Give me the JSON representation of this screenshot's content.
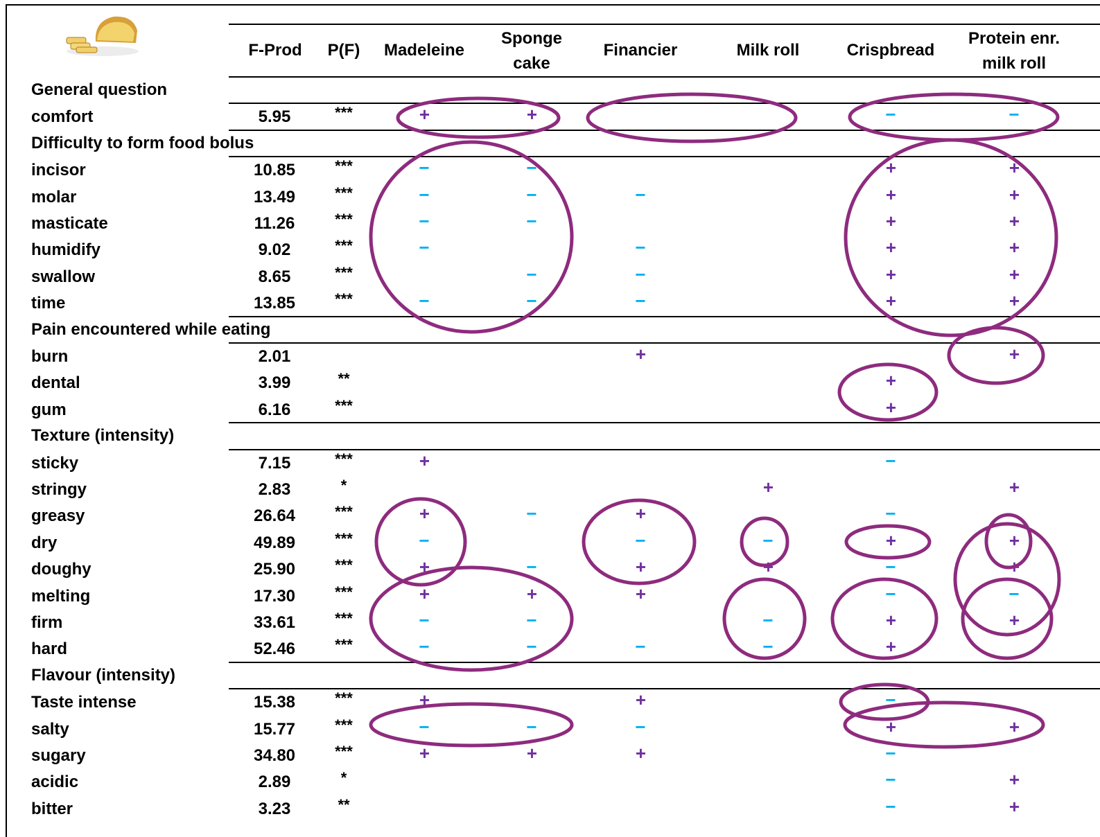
{
  "columns": {
    "fprod": "F-Prod",
    "pf": "P(F)",
    "products": [
      {
        "line1": "Madeleine",
        "line2": ""
      },
      {
        "line1": "Sponge",
        "line2": "cake"
      },
      {
        "line1": "Financier",
        "line2": ""
      },
      {
        "line1": "Milk roll",
        "line2": ""
      },
      {
        "line1": "Crispbread",
        "line2": ""
      },
      {
        "line1": "Protein enr.",
        "line2": "milk roll"
      }
    ]
  },
  "colors": {
    "plus": "#7030A0",
    "minus": "#00B0F0",
    "ellipse": "#8E2B7E"
  },
  "image": {
    "icon": "brioche-bread-icon"
  },
  "sections": [
    {
      "title": "General question",
      "rows": [
        {
          "label": "comfort",
          "fprod": "5.95",
          "pf": "***",
          "marks": [
            "+",
            "+",
            "",
            "",
            "−",
            "−"
          ]
        }
      ]
    },
    {
      "title": "Difficulty to form food bolus",
      "rows": [
        {
          "label": "incisor",
          "fprod": "10.85",
          "pf": "***",
          "marks": [
            "−",
            "−",
            "",
            "",
            "+",
            "+"
          ]
        },
        {
          "label": "molar",
          "fprod": "13.49",
          "pf": "***",
          "marks": [
            "−",
            "−",
            "−",
            "",
            "+",
            "+"
          ]
        },
        {
          "label": "masticate",
          "fprod": "11.26",
          "pf": "***",
          "marks": [
            "−",
            "−",
            "",
            "",
            "+",
            "+"
          ]
        },
        {
          "label": "humidify",
          "fprod": "9.02",
          "pf": "***",
          "marks": [
            "−",
            "",
            "−",
            "",
            "+",
            "+"
          ]
        },
        {
          "label": "swallow",
          "fprod": "8.65",
          "pf": "***",
          "marks": [
            "",
            "−",
            "−",
            "",
            "+",
            "+"
          ]
        },
        {
          "label": "time",
          "fprod": "13.85",
          "pf": "***",
          "marks": [
            "−",
            "−",
            "−",
            "",
            "+",
            "+"
          ]
        }
      ]
    },
    {
      "title": "Pain encountered while eating",
      "rows": [
        {
          "label": "burn",
          "fprod": "2.01",
          "pf": "",
          "marks": [
            "",
            "",
            "+",
            "",
            "",
            "+"
          ]
        },
        {
          "label": "dental",
          "fprod": "3.99",
          "pf": "**",
          "marks": [
            "",
            "",
            "",
            "",
            "+",
            ""
          ]
        },
        {
          "label": "gum",
          "fprod": "6.16",
          "pf": "***",
          "marks": [
            "",
            "",
            "",
            "",
            "+",
            ""
          ]
        }
      ]
    },
    {
      "title": "Texture (intensity)",
      "rows": [
        {
          "label": "sticky",
          "fprod": "7.15",
          "pf": "***",
          "marks": [
            "+",
            "",
            "",
            "",
            "−",
            ""
          ]
        },
        {
          "label": "stringy",
          "fprod": "2.83",
          "pf": "*",
          "marks": [
            "",
            "",
            "",
            "+",
            "",
            "+"
          ]
        },
        {
          "label": "greasy",
          "fprod": "26.64",
          "pf": "***",
          "marks": [
            "+",
            "−",
            "+",
            "",
            "−",
            ""
          ]
        },
        {
          "label": "dry",
          "fprod": "49.89",
          "pf": "***",
          "marks": [
            "−",
            "",
            "−",
            "−",
            "+",
            "+"
          ]
        },
        {
          "label": "doughy",
          "fprod": "25.90",
          "pf": "***",
          "marks": [
            "+",
            "−",
            "+",
            "+",
            "−",
            "+"
          ]
        },
        {
          "label": "melting",
          "fprod": "17.30",
          "pf": "***",
          "marks": [
            "+",
            "+",
            "+",
            "",
            "−",
            "−"
          ]
        },
        {
          "label": "firm",
          "fprod": "33.61",
          "pf": "***",
          "marks": [
            "−",
            "−",
            "",
            "−",
            "+",
            "+"
          ]
        },
        {
          "label": "hard",
          "fprod": "52.46",
          "pf": "***",
          "marks": [
            "−",
            "−",
            "−",
            "−",
            "+",
            ""
          ]
        }
      ]
    },
    {
      "title": "Flavour (intensity)",
      "rows": [
        {
          "label": "Taste intense",
          "fprod": "15.38",
          "pf": "***",
          "marks": [
            "+",
            "",
            "+",
            "",
            "−",
            ""
          ]
        },
        {
          "label": "salty",
          "fprod": "15.77",
          "pf": "***",
          "marks": [
            "−",
            "−",
            "−",
            "",
            "+",
            "+"
          ]
        },
        {
          "label": "sugary",
          "fprod": "34.80",
          "pf": "***",
          "marks": [
            "+",
            "+",
            "+",
            "",
            "−",
            ""
          ]
        },
        {
          "label": "acidic",
          "fprod": "2.89",
          "pf": "*",
          "marks": [
            "",
            "",
            "",
            "",
            "−",
            "+"
          ]
        },
        {
          "label": "bitter",
          "fprod": "3.23",
          "pf": "**",
          "marks": [
            "",
            "",
            "",
            "",
            "−",
            "+"
          ]
        }
      ]
    }
  ]
}
